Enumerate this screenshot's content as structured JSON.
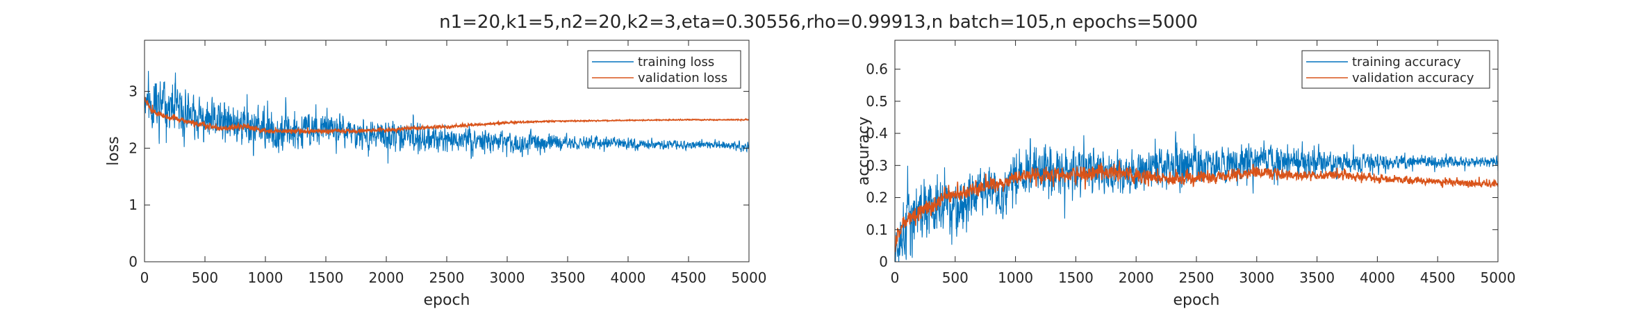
{
  "figure_title": "n1=20,k1=5,n2=20,k2=3,eta=0.30556,rho=0.99913,n batch=105,n epochs=5000",
  "colors": {
    "training": "#0072BD",
    "validation": "#D95319",
    "axis": "#262626",
    "text": "#262626"
  },
  "chart_data": [
    {
      "type": "line",
      "title": "",
      "xlabel": "epoch",
      "ylabel": "loss",
      "xlim": [
        0,
        5000
      ],
      "ylim": [
        0,
        3.9
      ],
      "xticks": [
        0,
        500,
        1000,
        1500,
        2000,
        2500,
        3000,
        3500,
        4000,
        4500,
        5000
      ],
      "yticks": [
        0,
        1,
        2,
        3
      ],
      "grid": false,
      "legend_position": "top-right",
      "series": [
        {
          "name": "training loss",
          "color": "#0072BD",
          "x": [
            0,
            50,
            100,
            150,
            200,
            300,
            400,
            500,
            600,
            700,
            800,
            900,
            1000,
            1200,
            1400,
            1600,
            1800,
            2000,
            2200,
            2500,
            2800,
            3000,
            3300,
            3600,
            4000,
            4500,
            5000
          ],
          "y": [
            2.9,
            2.75,
            2.7,
            2.8,
            2.75,
            2.6,
            2.55,
            2.5,
            2.45,
            2.4,
            2.45,
            2.4,
            2.3,
            2.3,
            2.35,
            2.3,
            2.25,
            2.2,
            2.2,
            2.15,
            2.15,
            2.1,
            2.1,
            2.1,
            2.08,
            2.06,
            2.05
          ],
          "noise": [
            0.3,
            0.45,
            0.5,
            0.5,
            0.45,
            0.45,
            0.45,
            0.4,
            0.4,
            0.4,
            0.4,
            0.4,
            0.35,
            0.35,
            0.35,
            0.3,
            0.3,
            0.3,
            0.28,
            0.25,
            0.22,
            0.2,
            0.15,
            0.12,
            0.1,
            0.08,
            0.08
          ],
          "seed": 11
        },
        {
          "name": "validation loss",
          "color": "#D95319",
          "x": [
            0,
            50,
            100,
            200,
            300,
            400,
            500,
            600,
            700,
            800,
            900,
            1000,
            1200,
            1500,
            1800,
            2000,
            2200,
            2500,
            2800,
            3000,
            3300,
            3600,
            4000,
            4500,
            5000
          ],
          "y": [
            2.9,
            2.7,
            2.62,
            2.55,
            2.5,
            2.45,
            2.4,
            2.35,
            2.35,
            2.38,
            2.35,
            2.3,
            2.3,
            2.3,
            2.3,
            2.32,
            2.35,
            2.38,
            2.42,
            2.45,
            2.47,
            2.48,
            2.49,
            2.5,
            2.5
          ],
          "noise": [
            0.06,
            0.06,
            0.05,
            0.05,
            0.05,
            0.05,
            0.05,
            0.05,
            0.05,
            0.05,
            0.05,
            0.05,
            0.04,
            0.04,
            0.04,
            0.04,
            0.03,
            0.03,
            0.02,
            0.02,
            0.015,
            0.012,
            0.01,
            0.01,
            0.01
          ],
          "seed": 23
        }
      ]
    },
    {
      "type": "line",
      "title": "",
      "xlabel": "epoch",
      "ylabel": "accuracy",
      "xlim": [
        0,
        5000
      ],
      "ylim": [
        0,
        0.69
      ],
      "xticks": [
        0,
        500,
        1000,
        1500,
        2000,
        2500,
        3000,
        3500,
        4000,
        4500,
        5000
      ],
      "yticks": [
        0,
        0.1,
        0.2,
        0.3,
        0.4,
        0.5,
        0.6
      ],
      "grid": false,
      "legend_position": "top-right",
      "series": [
        {
          "name": "training accuracy",
          "color": "#0072BD",
          "x": [
            0,
            50,
            100,
            200,
            300,
            400,
            500,
            600,
            700,
            800,
            900,
            1000,
            1200,
            1500,
            1800,
            2000,
            2200,
            2500,
            2800,
            3000,
            3300,
            3600,
            4000,
            4500,
            5000
          ],
          "y": [
            0.05,
            0.1,
            0.14,
            0.15,
            0.16,
            0.17,
            0.18,
            0.2,
            0.22,
            0.22,
            0.2,
            0.27,
            0.28,
            0.29,
            0.27,
            0.28,
            0.3,
            0.3,
            0.31,
            0.32,
            0.31,
            0.31,
            0.31,
            0.31,
            0.31
          ],
          "noise": [
            0.05,
            0.12,
            0.12,
            0.1,
            0.1,
            0.1,
            0.09,
            0.09,
            0.08,
            0.08,
            0.08,
            0.08,
            0.08,
            0.08,
            0.07,
            0.07,
            0.07,
            0.07,
            0.06,
            0.06,
            0.05,
            0.04,
            0.03,
            0.02,
            0.02
          ],
          "seed": 37
        },
        {
          "name": "validation accuracy",
          "color": "#D95319",
          "x": [
            0,
            30,
            60,
            100,
            200,
            300,
            400,
            500,
            600,
            700,
            800,
            900,
            1000,
            1200,
            1500,
            1700,
            2000,
            2200,
            2500,
            2800,
            3000,
            3300,
            3600,
            4000,
            4500,
            5000
          ],
          "y": [
            0.04,
            0.1,
            0.12,
            0.13,
            0.15,
            0.17,
            0.2,
            0.21,
            0.22,
            0.23,
            0.24,
            0.24,
            0.27,
            0.27,
            0.27,
            0.28,
            0.27,
            0.26,
            0.26,
            0.27,
            0.28,
            0.27,
            0.27,
            0.26,
            0.25,
            0.24
          ],
          "noise": [
            0.02,
            0.03,
            0.03,
            0.03,
            0.025,
            0.025,
            0.025,
            0.025,
            0.025,
            0.025,
            0.025,
            0.025,
            0.025,
            0.025,
            0.025,
            0.03,
            0.025,
            0.02,
            0.02,
            0.02,
            0.02,
            0.015,
            0.015,
            0.012,
            0.012,
            0.012
          ],
          "seed": 53
        }
      ]
    }
  ]
}
